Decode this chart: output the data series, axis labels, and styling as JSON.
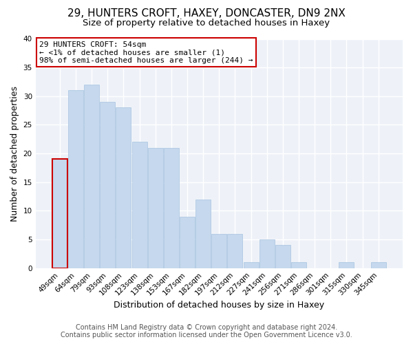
{
  "title": "29, HUNTERS CROFT, HAXEY, DONCASTER, DN9 2NX",
  "subtitle": "Size of property relative to detached houses in Haxey",
  "xlabel": "Distribution of detached houses by size in Haxey",
  "ylabel": "Number of detached properties",
  "categories": [
    "49sqm",
    "64sqm",
    "79sqm",
    "93sqm",
    "108sqm",
    "123sqm",
    "138sqm",
    "153sqm",
    "167sqm",
    "182sqm",
    "197sqm",
    "212sqm",
    "227sqm",
    "241sqm",
    "256sqm",
    "271sqm",
    "286sqm",
    "301sqm",
    "315sqm",
    "330sqm",
    "345sqm"
  ],
  "values": [
    19,
    31,
    32,
    29,
    28,
    22,
    21,
    21,
    9,
    12,
    6,
    6,
    1,
    5,
    4,
    1,
    0,
    0,
    1,
    0,
    1
  ],
  "bar_color": "#c5d8ed",
  "bar_edge_color": "#a8c4e0",
  "highlight_bar_index": 0,
  "highlight_color": "#cc0000",
  "annotation_lines": [
    "29 HUNTERS CROFT: 54sqm",
    "← <1% of detached houses are smaller (1)",
    "98% of semi-detached houses are larger (244) →"
  ],
  "annotation_box_color": "#ffffff",
  "annotation_box_edge_color": "#cc0000",
  "ylim": [
    0,
    40
  ],
  "yticks": [
    0,
    5,
    10,
    15,
    20,
    25,
    30,
    35,
    40
  ],
  "footer_lines": [
    "Contains HM Land Registry data © Crown copyright and database right 2024.",
    "Contains public sector information licensed under the Open Government Licence v3.0."
  ],
  "background_color": "#ffffff",
  "plot_bg_color": "#eef2f8",
  "grid_color": "#ffffff",
  "title_fontsize": 11,
  "subtitle_fontsize": 9.5,
  "axis_label_fontsize": 9,
  "tick_fontsize": 7.5,
  "footer_fontsize": 7,
  "annotation_fontsize": 8
}
